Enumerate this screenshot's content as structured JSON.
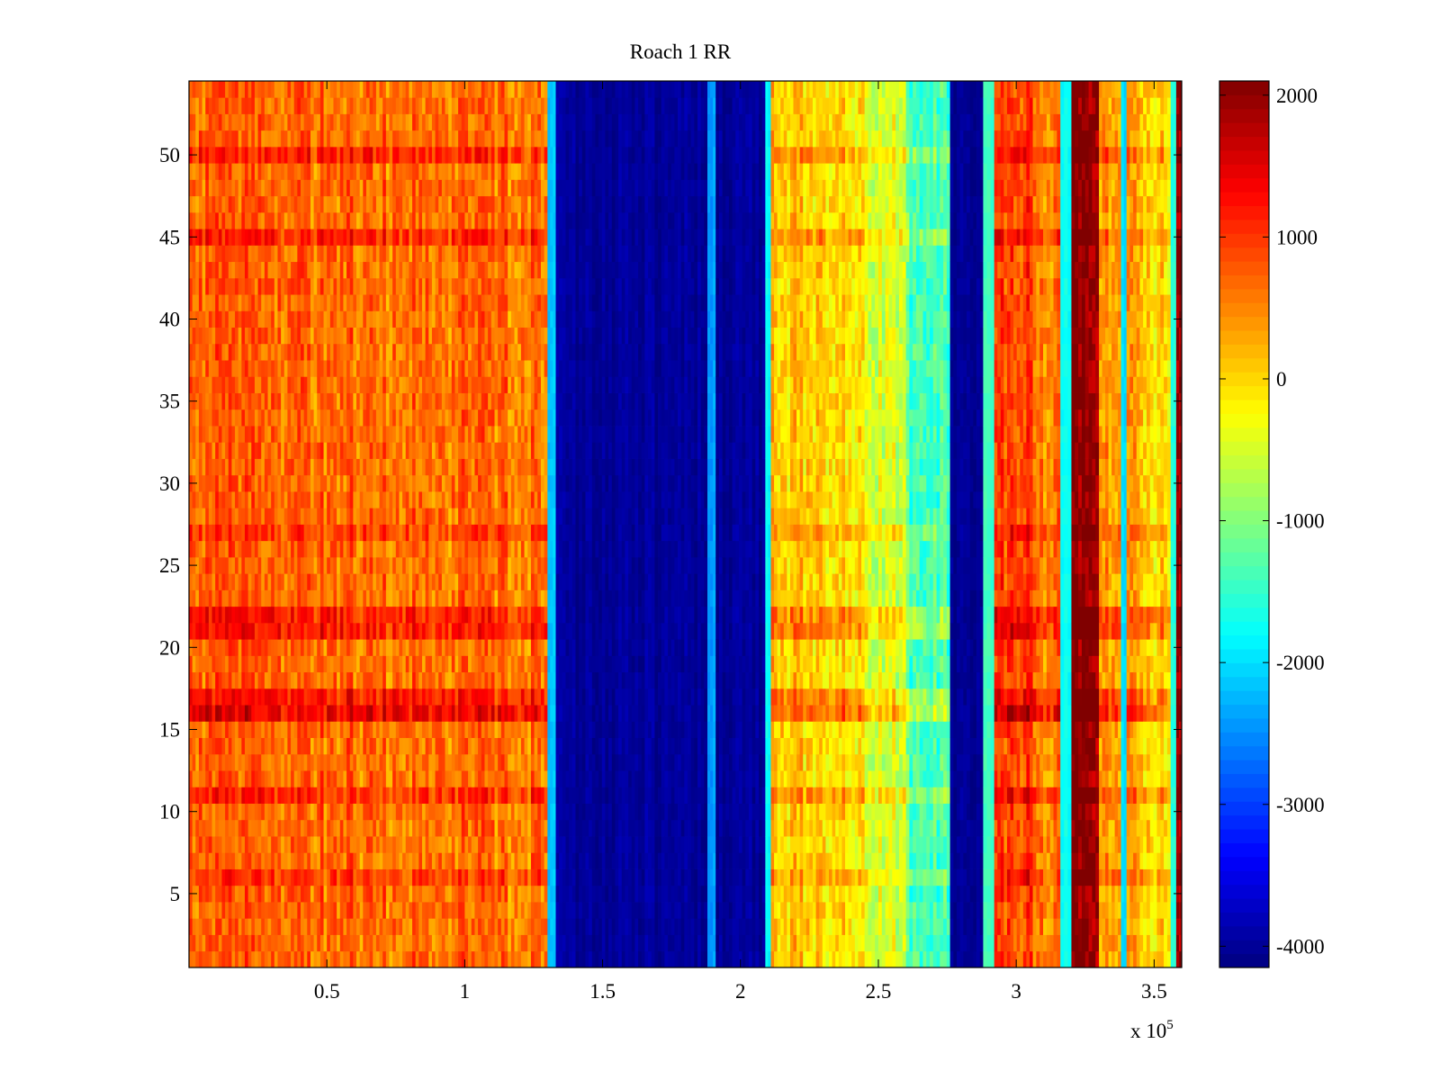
{
  "chart_data": {
    "type": "heatmap",
    "title": "Roach 1 RR",
    "xlabel": "",
    "ylabel": "",
    "x_multiplier_label": "x 10",
    "x_multiplier_exponent": "5",
    "xlim": [
      0,
      3.6
    ],
    "ylim": [
      0.5,
      54.5
    ],
    "x_ticks": [
      0.5,
      1,
      1.5,
      2,
      2.5,
      3,
      3.5
    ],
    "x_tick_labels": [
      "0.5",
      "1",
      "1.5",
      "2",
      "2.5",
      "3",
      "3.5"
    ],
    "y_ticks": [
      5,
      10,
      15,
      20,
      25,
      30,
      35,
      40,
      45,
      50
    ],
    "y_tick_labels": [
      "5",
      "10",
      "15",
      "20",
      "25",
      "30",
      "35",
      "40",
      "45",
      "50"
    ],
    "colorbar": {
      "colormap": "jet",
      "clim": [
        -4150,
        2100
      ],
      "ticks": [
        2000,
        1000,
        0,
        -1000,
        -2000,
        -3000,
        -4000
      ],
      "tick_labels": [
        "2000",
        "1000",
        "0",
        "-1000",
        "-2000",
        "-3000",
        "-4000"
      ],
      "position": "right"
    },
    "rows": 54,
    "column_profile": [
      {
        "x_start": 0.0,
        "x_end": 0.5,
        "value": 700
      },
      {
        "x_start": 0.5,
        "x_end": 1.0,
        "value": 650
      },
      {
        "x_start": 1.0,
        "x_end": 1.3,
        "value": 600
      },
      {
        "x_start": 1.3,
        "x_end": 1.33,
        "value": -2200
      },
      {
        "x_start": 1.33,
        "x_end": 1.88,
        "value": -4000
      },
      {
        "x_start": 1.88,
        "x_end": 1.91,
        "value": -2400
      },
      {
        "x_start": 1.91,
        "x_end": 2.09,
        "value": -4000
      },
      {
        "x_start": 2.09,
        "x_end": 2.11,
        "value": -1800
      },
      {
        "x_start": 2.11,
        "x_end": 2.25,
        "value": 100
      },
      {
        "x_start": 2.25,
        "x_end": 2.45,
        "value": 0
      },
      {
        "x_start": 2.45,
        "x_end": 2.6,
        "value": -500
      },
      {
        "x_start": 2.6,
        "x_end": 2.76,
        "value": -1300
      },
      {
        "x_start": 2.76,
        "x_end": 2.88,
        "value": -4000
      },
      {
        "x_start": 2.88,
        "x_end": 2.92,
        "value": -1500
      },
      {
        "x_start": 2.92,
        "x_end": 3.06,
        "value": 900
      },
      {
        "x_start": 3.06,
        "x_end": 3.16,
        "value": 600
      },
      {
        "x_start": 3.16,
        "x_end": 3.2,
        "value": -1800
      },
      {
        "x_start": 3.2,
        "x_end": 3.3,
        "value": 2100
      },
      {
        "x_start": 3.3,
        "x_end": 3.38,
        "value": 300
      },
      {
        "x_start": 3.38,
        "x_end": 3.4,
        "value": -2000
      },
      {
        "x_start": 3.4,
        "x_end": 3.46,
        "value": 200
      },
      {
        "x_start": 3.46,
        "x_end": 3.56,
        "value": 0
      },
      {
        "x_start": 3.56,
        "x_end": 3.58,
        "value": -1500
      },
      {
        "x_start": 3.58,
        "x_end": 3.6,
        "value": 2000
      }
    ],
    "row_offsets": [
      {
        "y": 6,
        "value": 300
      },
      {
        "y": 11,
        "value": 400
      },
      {
        "y": 16,
        "value": 700
      },
      {
        "y": 17,
        "value": 500
      },
      {
        "y": 21,
        "value": 500
      },
      {
        "y": 22,
        "value": 500
      },
      {
        "y": 27,
        "value": 300
      },
      {
        "y": 45,
        "value": 400
      },
      {
        "y": 50,
        "value": 400
      }
    ]
  }
}
